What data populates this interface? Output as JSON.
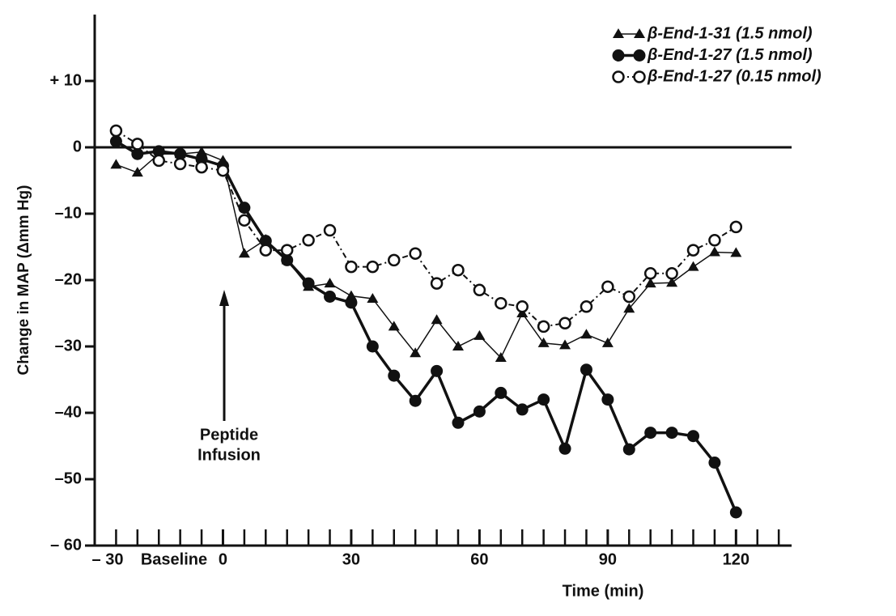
{
  "chart_data": {
    "type": "line",
    "y_label": "Change in MAP (Δmm Hg)",
    "x_label": "Time (min)",
    "xlim": [
      -30,
      133
    ],
    "ylim": [
      -60,
      20
    ],
    "xticks": [
      {
        "value": -30,
        "label": "– 30"
      },
      0,
      30,
      60,
      90,
      120
    ],
    "x_minor_ticks": [
      -25,
      -20,
      -15,
      -10,
      -5,
      5,
      10,
      15,
      20,
      25,
      35,
      40,
      45,
      50,
      55,
      65,
      70,
      75,
      80,
      85,
      95,
      100,
      105,
      110,
      115,
      125,
      130
    ],
    "yticks": [
      {
        "value": 10,
        "label": "+ 10"
      },
      0,
      {
        "value": -10,
        "label": "–10"
      },
      {
        "value": -20,
        "label": "–20"
      },
      {
        "value": -30,
        "label": "–30"
      },
      {
        "value": -40,
        "label": "–40"
      },
      {
        "value": -50,
        "label": "–50"
      },
      {
        "value": -60,
        "label": "– 60"
      }
    ],
    "zero_line": true,
    "legend_position": "top-right",
    "annotations": {
      "baseline": "Baseline",
      "infusion": [
        "Peptide",
        "Infusion"
      ]
    },
    "x": [
      -25,
      -20,
      -15,
      -10,
      -5,
      0,
      5,
      10,
      15,
      20,
      25,
      30,
      35,
      40,
      45,
      50,
      55,
      60,
      65,
      70,
      75,
      80,
      85,
      90,
      95,
      100,
      105,
      110,
      115,
      120
    ],
    "series": [
      {
        "name": "β-End-1-31 (1.5 nmol)",
        "color": "#111111",
        "marker": "triangle",
        "line": "solid-thin",
        "values": [
          -2.6,
          -3.8,
          -1,
          -1,
          -0.7,
          -2,
          -16,
          -13.9,
          -17,
          -21,
          -20.5,
          -22.4,
          -22.8,
          -27,
          -31,
          -26,
          -30,
          -28.4,
          -31.7,
          -25,
          -29.5,
          -29.8,
          -28.2,
          -29.5,
          -24.3,
          -20.5,
          -20.4,
          -18,
          -15.8,
          -15.9
        ]
      },
      {
        "name": "β-End-1-27 (1.5 nmol)",
        "color": "#111111",
        "marker": "filled-circle",
        "line": "solid-thick",
        "values": [
          0.9,
          -1,
          -0.6,
          -1,
          -1.8,
          -2.8,
          -9.1,
          -14.1,
          -17,
          -20.5,
          -22.5,
          -23.4,
          -30,
          -34.4,
          -38.2,
          -33.7,
          -41.5,
          -39.8,
          -37,
          -39.5,
          -38,
          -45.4,
          -33.5,
          -38,
          -45.5,
          -43,
          -43,
          -43.5,
          -47.5,
          -55
        ]
      },
      {
        "name": "β-End-1-27 (0.15 nmol)",
        "color": "#111111",
        "marker": "open-circle",
        "line": "dash-dot",
        "values": [
          2.5,
          0.5,
          -2,
          -2.5,
          -3,
          -3.5,
          -11,
          -15.5,
          -15.5,
          -14,
          -12.5,
          -18,
          -18,
          -17,
          -16,
          -20.5,
          -18.5,
          -21.5,
          -23.5,
          -24,
          -27,
          -26.5,
          -24,
          -21,
          -22.5,
          -19,
          -19,
          -15.5,
          -14,
          -12
        ]
      }
    ]
  }
}
